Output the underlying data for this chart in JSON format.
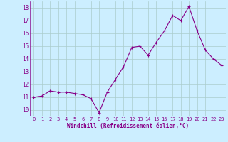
{
  "x": [
    0,
    1,
    2,
    3,
    4,
    5,
    6,
    7,
    8,
    9,
    10,
    11,
    12,
    13,
    14,
    15,
    16,
    17,
    18,
    19,
    20,
    21,
    22,
    23
  ],
  "y": [
    11.0,
    11.1,
    11.5,
    11.4,
    11.4,
    11.3,
    11.2,
    10.9,
    9.8,
    11.4,
    12.4,
    13.4,
    14.9,
    15.0,
    14.3,
    15.3,
    16.2,
    17.4,
    17.0,
    18.1,
    16.2,
    14.7,
    14.0,
    13.5
  ],
  "line_color": "#880088",
  "marker": "+",
  "marker_size": 3.5,
  "marker_linewidth": 0.8,
  "bg_color": "#cceeff",
  "grid_color": "#aacccc",
  "xlabel": "Windchill (Refroidissement éolien,°C)",
  "xlabel_color": "#880088",
  "tick_color": "#880088",
  "ylim": [
    9.5,
    18.5
  ],
  "xlim": [
    -0.5,
    23.5
  ],
  "yticks": [
    10,
    11,
    12,
    13,
    14,
    15,
    16,
    17,
    18
  ],
  "xticks": [
    0,
    1,
    2,
    3,
    4,
    5,
    6,
    7,
    8,
    9,
    10,
    11,
    12,
    13,
    14,
    15,
    16,
    17,
    18,
    19,
    20,
    21,
    22,
    23
  ],
  "line_width": 0.8,
  "tick_fontsize": 5.0,
  "xlabel_fontsize": 5.5
}
